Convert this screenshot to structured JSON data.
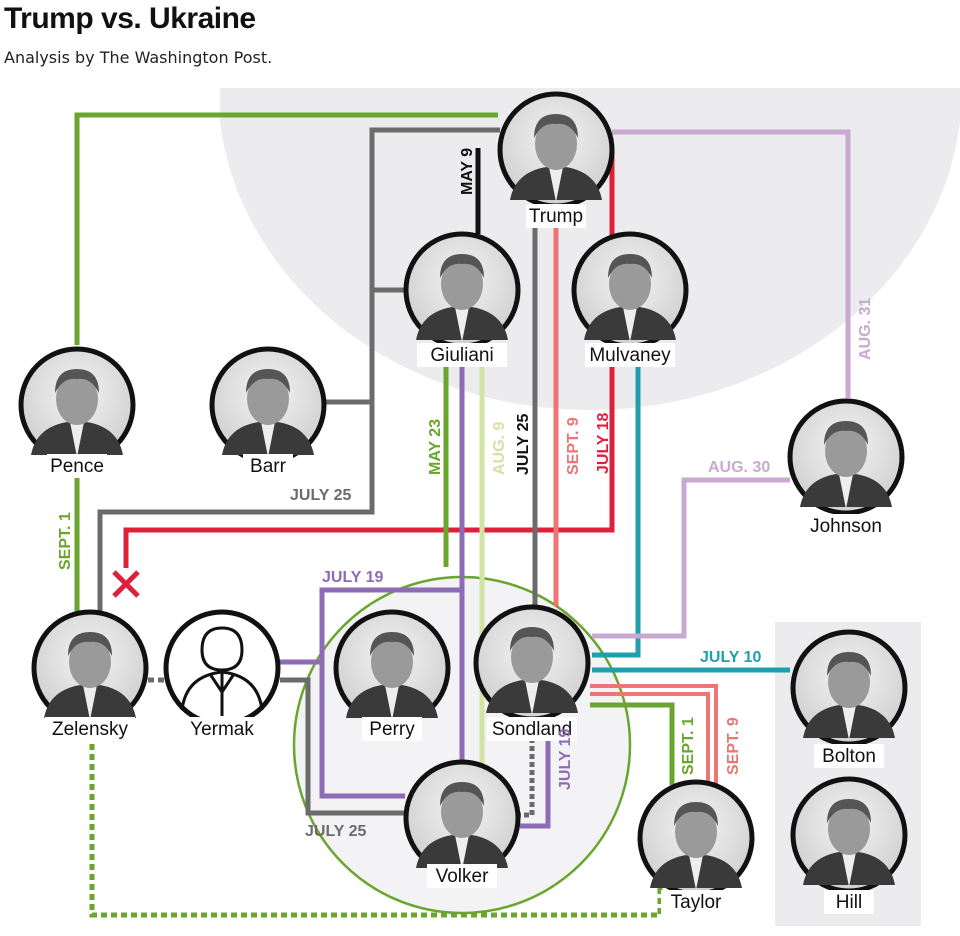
{
  "header": {
    "title": "Trump vs. Ukraine",
    "subtitle": "Analysis by The Washington Post."
  },
  "colors": {
    "green": "#6aa52d",
    "gray": "#6b6b6b",
    "black": "#111111",
    "red": "#e0203a",
    "pink": "#ef7474",
    "teal": "#1f9fae",
    "purple": "#8e6bb5",
    "light_green": "#d3e3a5",
    "lavender": "#c9a9d1",
    "background_gray": "#ececee"
  },
  "people": [
    {
      "id": "trump",
      "name": "Trump"
    },
    {
      "id": "giuliani",
      "name": "Giuliani"
    },
    {
      "id": "mulvaney",
      "name": "Mulvaney"
    },
    {
      "id": "pence",
      "name": "Pence"
    },
    {
      "id": "barr",
      "name": "Barr"
    },
    {
      "id": "johnson",
      "name": "Johnson"
    },
    {
      "id": "zelensky",
      "name": "Zelensky"
    },
    {
      "id": "yermak",
      "name": "Yermak",
      "icon": "person-outline-icon"
    },
    {
      "id": "perry",
      "name": "Perry"
    },
    {
      "id": "sondland",
      "name": "Sondland"
    },
    {
      "id": "volker",
      "name": "Volker"
    },
    {
      "id": "taylor",
      "name": "Taylor"
    },
    {
      "id": "bolton",
      "name": "Bolton"
    },
    {
      "id": "hill",
      "name": "Hill"
    }
  ],
  "connections": [
    {
      "id": "pence-trump",
      "color": "green",
      "date": ""
    },
    {
      "id": "pence-zelensky",
      "color": "green",
      "date": "SEPT. 1"
    },
    {
      "id": "trump-barr-giuliani",
      "color": "gray",
      "date": ""
    },
    {
      "id": "trump-zelensky",
      "color": "gray",
      "date": "JULY 25"
    },
    {
      "id": "trump-giuliani",
      "color": "black",
      "date": "MAY 9"
    },
    {
      "id": "mulvaney-zelensky",
      "color": "red",
      "date": "JULY 18",
      "status": "blocked",
      "marker": "x-icon"
    },
    {
      "id": "trump-sondland-gray",
      "color": "gray",
      "date": "JULY 25"
    },
    {
      "id": "trump-sondland-pink",
      "color": "pink",
      "date": "SEPT. 9"
    },
    {
      "id": "giuliani-circle",
      "color": "green",
      "date": "MAY 23"
    },
    {
      "id": "giuliani-volker-lightgreen",
      "color": "light_green",
      "date": "AUG. 9"
    },
    {
      "id": "giuliani-volker-perry",
      "color": "purple",
      "date": "JULY 19"
    },
    {
      "id": "mulvaney-sondland",
      "color": "teal",
      "date": ""
    },
    {
      "id": "sondland-bolton",
      "color": "teal",
      "date": "JULY 10"
    },
    {
      "id": "trump-johnson",
      "color": "lavender",
      "date": "AUG. 31"
    },
    {
      "id": "johnson-sondland",
      "color": "lavender",
      "date": "AUG. 30"
    },
    {
      "id": "yermak-perry",
      "color": "purple",
      "date": ""
    },
    {
      "id": "yermak-volker",
      "color": "gray",
      "date": "JULY 25"
    },
    {
      "id": "sondland-volker-purple",
      "color": "purple",
      "date": "JULY 19"
    },
    {
      "id": "sondland-volker-dotted",
      "color": "gray",
      "date": ""
    },
    {
      "id": "sondland-taylor-green",
      "color": "green",
      "date": "SEPT. 1"
    },
    {
      "id": "sondland-taylor-pink",
      "color": "pink",
      "date": "SEPT. 9"
    },
    {
      "id": "zelensky-yermak",
      "color": "gray",
      "date": ""
    },
    {
      "id": "zelensky-taylor",
      "color": "green",
      "date": ""
    }
  ]
}
